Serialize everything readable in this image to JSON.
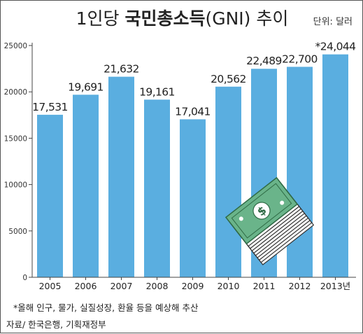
{
  "title": {
    "pre": "1인당 ",
    "main": "국민총소득",
    "post": "(GNI) 추이"
  },
  "unit_label": "단위: 달러",
  "footnote": "*올해 인구, 물가, 실질성장, 환율 등을 예상해 추산",
  "source": "자료/ 한국은행, 기획재정부",
  "colors": {
    "bar": "#5aaee0",
    "axis": "#444444",
    "money": "#6ab48a",
    "money_dark": "#2f6b45"
  },
  "icons": [
    "money-stack-icon"
  ],
  "chart_data": {
    "type": "bar",
    "categories": [
      "2005",
      "2006",
      "2007",
      "2008",
      "2009",
      "2010",
      "2011",
      "2012",
      "2013년"
    ],
    "values": [
      17531,
      19691,
      21632,
      19161,
      17041,
      20562,
      22489,
      22700,
      24044
    ],
    "value_labels": [
      "17,531",
      "19,691",
      "21,632",
      "19,161",
      "17,041",
      "20,562",
      "22,489",
      "22,700",
      "*24,044"
    ],
    "yticks": [
      0,
      5000,
      10000,
      15000,
      20000,
      25000
    ],
    "ylim": [
      0,
      25000
    ],
    "xlabel": "",
    "ylabel": "",
    "legend": "none",
    "grid": false
  }
}
